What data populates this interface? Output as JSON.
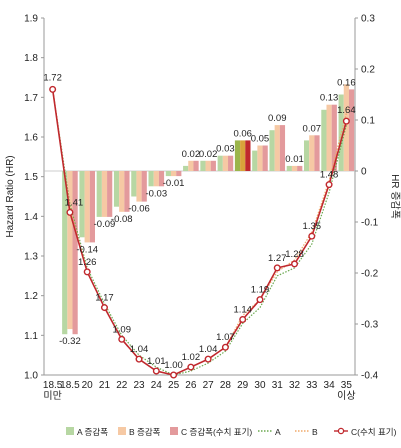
{
  "chart_data": {
    "type": "bar",
    "categories": [
      "18.5\n미만",
      "18.5",
      "20",
      "21",
      "22",
      "23",
      "24",
      "25",
      "26",
      "27",
      "28",
      "29",
      "30",
      "31",
      "32",
      "33",
      "34",
      "35\n이상"
    ],
    "xtick_labels": [
      "18.5",
      "18.5",
      "20",
      "21",
      "22",
      "23",
      "24",
      "25",
      "26",
      "27",
      "28",
      "29",
      "30",
      "31",
      "32",
      "33",
      "34",
      "35"
    ],
    "xtick_sublabels": [
      "미만",
      "",
      "",
      "",
      "",
      "",
      "",
      "",
      "",
      "",
      "",
      "",
      "",
      "",
      "",
      "",
      "",
      "이상"
    ],
    "ylabel": "Hazard Ratio (HR)",
    "y2label": "HR 증감폭",
    "ylim": [
      1.0,
      1.9
    ],
    "y2lim": [
      -0.4,
      0.3
    ],
    "yticks": [
      "1.0",
      "1.1",
      "1.2",
      "1.3",
      "1.4",
      "1.5",
      "1.6",
      "1.7",
      "1.8",
      "1.9"
    ],
    "y2ticks": [
      "-0.4",
      "-0.3",
      "-0.2",
      "-0.1",
      "0",
      "0.1",
      "0.2",
      "0.3"
    ],
    "line_series": [
      {
        "name": "A",
        "color": "#6aa84f",
        "dashed": true,
        "values": [
          1.72,
          1.43,
          1.27,
          1.18,
          1.1,
          1.05,
          1.02,
          1.0,
          1.01,
          1.03,
          1.06,
          1.13,
          1.17,
          1.25,
          1.27,
          1.33,
          1.46,
          1.63
        ]
      },
      {
        "name": "B",
        "color": "#f0a868",
        "dashed": true,
        "values": [
          1.72,
          1.42,
          1.26,
          1.17,
          1.09,
          1.04,
          1.01,
          1.0,
          1.02,
          1.04,
          1.07,
          1.15,
          1.19,
          1.26,
          1.29,
          1.36,
          1.49,
          1.66
        ]
      },
      {
        "name": "C(수치 표기)",
        "color": "#c0282d",
        "dashed": false,
        "markers": true,
        "values": [
          1.72,
          1.41,
          1.26,
          1.17,
          1.09,
          1.04,
          1.01,
          1.0,
          1.02,
          1.04,
          1.07,
          1.14,
          1.19,
          1.27,
          1.28,
          1.35,
          1.48,
          1.64
        ],
        "labels": [
          "1.72",
          "1.41",
          "1.26",
          "1.17",
          "1.09",
          "1.04",
          "1.01",
          "1.00",
          "1.02",
          "1.04",
          "1.07",
          "1.14",
          "1.19",
          "1.27",
          "1.28",
          "1.35",
          "1.48",
          "1.64"
        ]
      }
    ],
    "bar_series": [
      {
        "name": "A 증감폭",
        "color": "#b7d7a3",
        "values": [
          null,
          -0.32,
          -0.13,
          -0.09,
          -0.07,
          -0.05,
          -0.03,
          -0.01,
          0.01,
          0.02,
          0.03,
          0.06,
          0.04,
          0.08,
          0.01,
          0.06,
          0.12,
          0.15
        ]
      },
      {
        "name": "B 증감폭",
        "color": "#f6c9a4",
        "values": [
          null,
          -0.31,
          -0.14,
          -0.09,
          -0.08,
          -0.06,
          -0.03,
          -0.01,
          0.02,
          0.02,
          0.03,
          0.06,
          0.05,
          0.09,
          0.01,
          0.07,
          0.13,
          0.17
        ]
      },
      {
        "name": "C 증감폭(수치 표기)",
        "color": "#e39a9c",
        "highlight_index": 10,
        "highlight_color": "#c0282d",
        "values": [
          null,
          -0.32,
          -0.14,
          -0.09,
          -0.08,
          -0.06,
          -0.03,
          -0.01,
          0.02,
          0.02,
          0.03,
          0.06,
          0.05,
          0.09,
          0.01,
          0.07,
          0.13,
          0.16
        ],
        "labels": [
          null,
          "-0.32",
          "-0.14",
          "-0.09",
          "-0.08",
          "-0.06",
          "-0.03",
          "-0.01",
          "0.02",
          "0.02",
          "0.03",
          "0.06",
          "0.05",
          "0.09",
          "0.01",
          "0.07",
          "0.13",
          "0.16"
        ]
      }
    ],
    "highlight_bars_index": 11,
    "highlight_bars_colors": [
      "#9bb54a",
      "#d9a23a",
      "#c0282d"
    ],
    "legend": {
      "placement": "bottom",
      "entries": [
        "A 증감폭",
        "B 증감폭",
        "C 증감폭(수치 표기)",
        "A",
        "B",
        "C(수치 표기)"
      ]
    },
    "grid": false
  }
}
